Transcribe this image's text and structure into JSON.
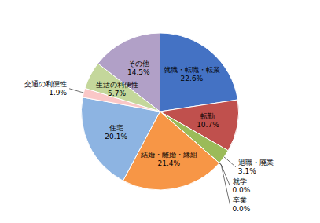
{
  "chart_data": {
    "type": "pie",
    "categories": [
      "就職・転職・転業",
      "転勤",
      "退職・廃業",
      "就学",
      "卒業",
      "結婚・離婚・縁組",
      "住宅",
      "交通の利便性",
      "生活の利便性",
      "その他"
    ],
    "values": [
      22.6,
      10.7,
      3.1,
      0.0,
      0.0,
      21.4,
      20.1,
      1.9,
      5.7,
      14.5
    ],
    "value_labels": [
      "22.6%",
      "10.7%",
      "3.1%",
      "0.0%",
      "0.0%",
      "21.4%",
      "20.1%",
      "1.9%",
      "5.7%",
      "14.5%"
    ],
    "colors": [
      "#4472C4",
      "#C0504D",
      "#9BBB59",
      "#4BACC6",
      "#FFFFFF",
      "#F79646",
      "#8DB4E2",
      "#FAC7C7",
      "#C4D79B",
      "#B1A0C7"
    ],
    "data_labels": true
  }
}
